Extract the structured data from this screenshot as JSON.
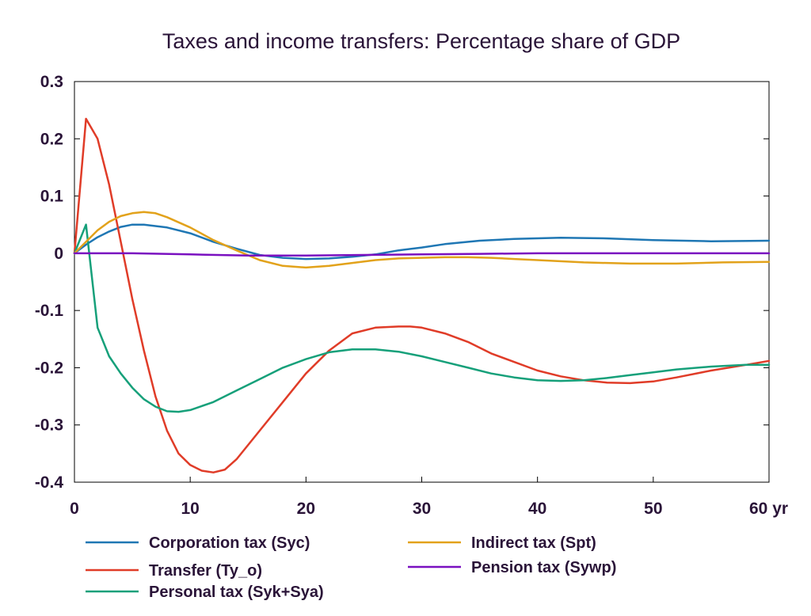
{
  "chart_data": {
    "type": "line",
    "title": "Taxes and income transfers: Percentage share of GDP",
    "xlabel": "",
    "ylabel": "",
    "xlim": [
      0,
      60
    ],
    "ylim": [
      -0.4,
      0.3
    ],
    "grid": false,
    "legend_position": "bottom",
    "x_ticks": [
      0,
      10,
      20,
      30,
      40,
      50,
      60
    ],
    "x_tick_labels": [
      "0",
      "10",
      "20",
      "30",
      "40",
      "50",
      "60 yr"
    ],
    "y_ticks": [
      0.3,
      0.2,
      0.1,
      0,
      -0.1,
      -0.2,
      -0.3,
      -0.4
    ],
    "y_tick_labels": [
      "0.3",
      "0.2",
      "0.1",
      "0",
      "-0.1",
      "-0.2",
      "-0.3",
      "-0.4"
    ],
    "series": [
      {
        "name": "Corporation tax (Syc)",
        "color": "#1f77b4",
        "points": [
          [
            0,
            0.0
          ],
          [
            1,
            0.015
          ],
          [
            2,
            0.028
          ],
          [
            3,
            0.038
          ],
          [
            4,
            0.046
          ],
          [
            5,
            0.05
          ],
          [
            6,
            0.05
          ],
          [
            8,
            0.045
          ],
          [
            10,
            0.035
          ],
          [
            12,
            0.02
          ],
          [
            14,
            0.008
          ],
          [
            16,
            -0.003
          ],
          [
            18,
            -0.008
          ],
          [
            20,
            -0.01
          ],
          [
            22,
            -0.009
          ],
          [
            24,
            -0.006
          ],
          [
            26,
            -0.002
          ],
          [
            28,
            0.005
          ],
          [
            30,
            0.01
          ],
          [
            32,
            0.016
          ],
          [
            35,
            0.022
          ],
          [
            38,
            0.025
          ],
          [
            42,
            0.027
          ],
          [
            46,
            0.026
          ],
          [
            50,
            0.023
          ],
          [
            55,
            0.021
          ],
          [
            60,
            0.022
          ]
        ]
      },
      {
        "name": "Transfer (Ty_o)",
        "color": "#e03c28",
        "points": [
          [
            0,
            0.0
          ],
          [
            1,
            0.235
          ],
          [
            2,
            0.2
          ],
          [
            3,
            0.12
          ],
          [
            4,
            0.02
          ],
          [
            5,
            -0.08
          ],
          [
            6,
            -0.17
          ],
          [
            7,
            -0.25
          ],
          [
            8,
            -0.31
          ],
          [
            9,
            -0.35
          ],
          [
            10,
            -0.37
          ],
          [
            11,
            -0.38
          ],
          [
            12,
            -0.383
          ],
          [
            13,
            -0.378
          ],
          [
            14,
            -0.36
          ],
          [
            16,
            -0.31
          ],
          [
            18,
            -0.26
          ],
          [
            20,
            -0.21
          ],
          [
            22,
            -0.17
          ],
          [
            24,
            -0.14
          ],
          [
            26,
            -0.13
          ],
          [
            28,
            -0.128
          ],
          [
            29,
            -0.128
          ],
          [
            30,
            -0.13
          ],
          [
            32,
            -0.14
          ],
          [
            34,
            -0.155
          ],
          [
            36,
            -0.175
          ],
          [
            38,
            -0.19
          ],
          [
            40,
            -0.205
          ],
          [
            42,
            -0.215
          ],
          [
            44,
            -0.222
          ],
          [
            46,
            -0.226
          ],
          [
            48,
            -0.227
          ],
          [
            50,
            -0.224
          ],
          [
            52,
            -0.217
          ],
          [
            55,
            -0.205
          ],
          [
            58,
            -0.195
          ],
          [
            60,
            -0.188
          ]
        ]
      },
      {
        "name": "Personal tax (Syk+Sya)",
        "color": "#16a07a",
        "points": [
          [
            0,
            0.0
          ],
          [
            1,
            0.05
          ],
          [
            2,
            -0.13
          ],
          [
            3,
            -0.18
          ],
          [
            4,
            -0.21
          ],
          [
            5,
            -0.235
          ],
          [
            6,
            -0.255
          ],
          [
            7,
            -0.268
          ],
          [
            8,
            -0.276
          ],
          [
            9,
            -0.277
          ],
          [
            10,
            -0.274
          ],
          [
            12,
            -0.26
          ],
          [
            14,
            -0.24
          ],
          [
            16,
            -0.22
          ],
          [
            18,
            -0.2
          ],
          [
            20,
            -0.185
          ],
          [
            22,
            -0.173
          ],
          [
            24,
            -0.168
          ],
          [
            26,
            -0.168
          ],
          [
            28,
            -0.172
          ],
          [
            30,
            -0.18
          ],
          [
            32,
            -0.19
          ],
          [
            34,
            -0.2
          ],
          [
            36,
            -0.21
          ],
          [
            38,
            -0.217
          ],
          [
            40,
            -0.222
          ],
          [
            42,
            -0.223
          ],
          [
            44,
            -0.222
          ],
          [
            46,
            -0.218
          ],
          [
            48,
            -0.213
          ],
          [
            50,
            -0.208
          ],
          [
            52,
            -0.203
          ],
          [
            55,
            -0.198
          ],
          [
            58,
            -0.195
          ],
          [
            60,
            -0.195
          ]
        ]
      },
      {
        "name": "Indirect tax (Spt)",
        "color": "#e2a21b",
        "points": [
          [
            0,
            0.0
          ],
          [
            1,
            0.02
          ],
          [
            2,
            0.04
          ],
          [
            3,
            0.055
          ],
          [
            4,
            0.065
          ],
          [
            5,
            0.07
          ],
          [
            6,
            0.072
          ],
          [
            7,
            0.07
          ],
          [
            8,
            0.063
          ],
          [
            10,
            0.045
          ],
          [
            12,
            0.023
          ],
          [
            14,
            0.005
          ],
          [
            16,
            -0.012
          ],
          [
            18,
            -0.022
          ],
          [
            20,
            -0.025
          ],
          [
            22,
            -0.022
          ],
          [
            24,
            -0.017
          ],
          [
            26,
            -0.012
          ],
          [
            28,
            -0.009
          ],
          [
            30,
            -0.008
          ],
          [
            32,
            -0.007
          ],
          [
            34,
            -0.007
          ],
          [
            36,
            -0.008
          ],
          [
            38,
            -0.01
          ],
          [
            40,
            -0.012
          ],
          [
            44,
            -0.016
          ],
          [
            48,
            -0.018
          ],
          [
            52,
            -0.018
          ],
          [
            56,
            -0.016
          ],
          [
            60,
            -0.015
          ]
        ]
      },
      {
        "name": "Pension tax (Sywp)",
        "color": "#7a10c0",
        "points": [
          [
            0,
            0.0
          ],
          [
            5,
            0.0
          ],
          [
            10,
            -0.002
          ],
          [
            15,
            -0.004
          ],
          [
            20,
            -0.004
          ],
          [
            25,
            -0.003
          ],
          [
            30,
            -0.002
          ],
          [
            35,
            -0.001
          ],
          [
            40,
            0.0
          ],
          [
            45,
            0.0
          ],
          [
            50,
            0.0
          ],
          [
            55,
            0.0
          ],
          [
            60,
            0.0
          ]
        ]
      }
    ]
  },
  "legend": {
    "columns": [
      [
        "Corporation tax (Syc)",
        "Transfer (Ty_o)",
        "Personal tax (Syk+Sya)"
      ],
      [
        "Indirect tax (Spt)",
        "Pension tax (Sywp)"
      ]
    ]
  }
}
